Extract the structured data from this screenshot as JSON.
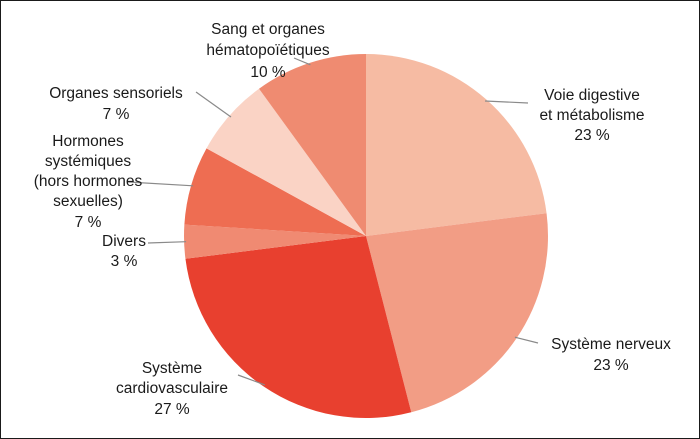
{
  "chart_data": {
    "type": "pie",
    "title": "",
    "start_angle_deg": 0,
    "direction": "clockwise",
    "slices": [
      {
        "label_lines": [
          "Voie digestive",
          "et métabolisme"
        ],
        "value_label": "23 %",
        "value": 23,
        "color": "#F6BBA3"
      },
      {
        "label_lines": [
          "Système nerveux"
        ],
        "value_label": "23 %",
        "value": 23,
        "color": "#F29D85"
      },
      {
        "label_lines": [
          "Système",
          "cardiovasculaire"
        ],
        "value_label": "27 %",
        "value": 27,
        "color": "#E8402F"
      },
      {
        "label_lines": [
          "Divers"
        ],
        "value_label": "3 %",
        "value": 3,
        "color": "#F08A72"
      },
      {
        "label_lines": [
          "Hormones",
          "systémiques",
          "(hors hormones",
          "sexuelles)"
        ],
        "value_label": "7 %",
        "value": 7,
        "color": "#EE6D52"
      },
      {
        "label_lines": [
          "Organes sensoriels"
        ],
        "value_label": "7 %",
        "value": 7,
        "color": "#FAD3C5"
      },
      {
        "label_lines": [
          "Sang et organes",
          "hématopoïétiques"
        ],
        "value_label": "10 %",
        "value": 10,
        "color": "#EF8B71"
      }
    ]
  }
}
